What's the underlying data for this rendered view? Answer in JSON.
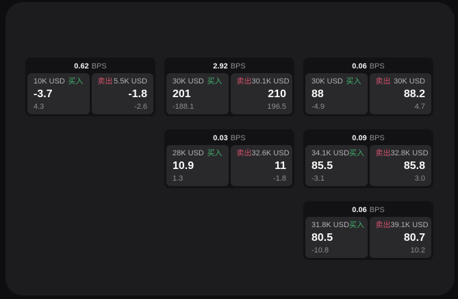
{
  "board": {
    "title": "bps-quote-board"
  },
  "cards": [
    {
      "col": 0,
      "row": 0,
      "bps_value": "0.62",
      "bps_unit": "BPS",
      "buy": {
        "notional": "10K USD",
        "side": "买入",
        "price": "-3.7",
        "change": "4.3"
      },
      "sell": {
        "side": "卖出",
        "notional": "5.5K USD",
        "price": "-1.8",
        "change": "-2.6"
      }
    },
    {
      "col": 1,
      "row": 0,
      "bps_value": "2.92",
      "bps_unit": "BPS",
      "buy": {
        "notional": "30K USD",
        "side": "买入",
        "price": "201",
        "change": "-188.1"
      },
      "sell": {
        "side": "卖出",
        "notional": "30.1K USD",
        "price": "210",
        "change": "196.5"
      }
    },
    {
      "col": 2,
      "row": 0,
      "bps_value": "0.06",
      "bps_unit": "BPS",
      "buy": {
        "notional": "30K USD",
        "side": "买入",
        "price": "88",
        "change": "-4.9"
      },
      "sell": {
        "side": "卖出",
        "notional": "30K USD",
        "price": "88.2",
        "change": "4.7"
      }
    },
    {
      "col": 1,
      "row": 1,
      "bps_value": "0.03",
      "bps_unit": "BPS",
      "buy": {
        "notional": "28K USD",
        "side": "买入",
        "price": "10.9",
        "change": "1.3"
      },
      "sell": {
        "side": "卖出",
        "notional": "32.6K USD",
        "price": "11",
        "change": "-1.8"
      }
    },
    {
      "col": 2,
      "row": 1,
      "bps_value": "0.09",
      "bps_unit": "BPS",
      "buy": {
        "notional": "34.1K USD",
        "side": "买入",
        "price": "85.5",
        "change": "-3.1"
      },
      "sell": {
        "side": "卖出",
        "notional": "32.8K USD",
        "price": "85.8",
        "change": "3.0"
      }
    },
    {
      "col": 2,
      "row": 2,
      "bps_value": "0.06",
      "bps_unit": "BPS",
      "buy": {
        "notional": "31.8K USD",
        "side": "买入",
        "price": "80.5",
        "change": "-10.8"
      },
      "sell": {
        "side": "卖出",
        "notional": "39.1K USD",
        "price": "80.7",
        "change": "10.2"
      }
    }
  ],
  "colors": {
    "page_bg": "#0e0e10",
    "panel_bg": "#1c1c1e",
    "card_bg": "#121214",
    "cell_bg": "#29292c",
    "buy_green": "#43b16c",
    "sell_red": "#cf5168",
    "label_text": "#b2b2b6",
    "muted_text": "#8e8e93"
  }
}
